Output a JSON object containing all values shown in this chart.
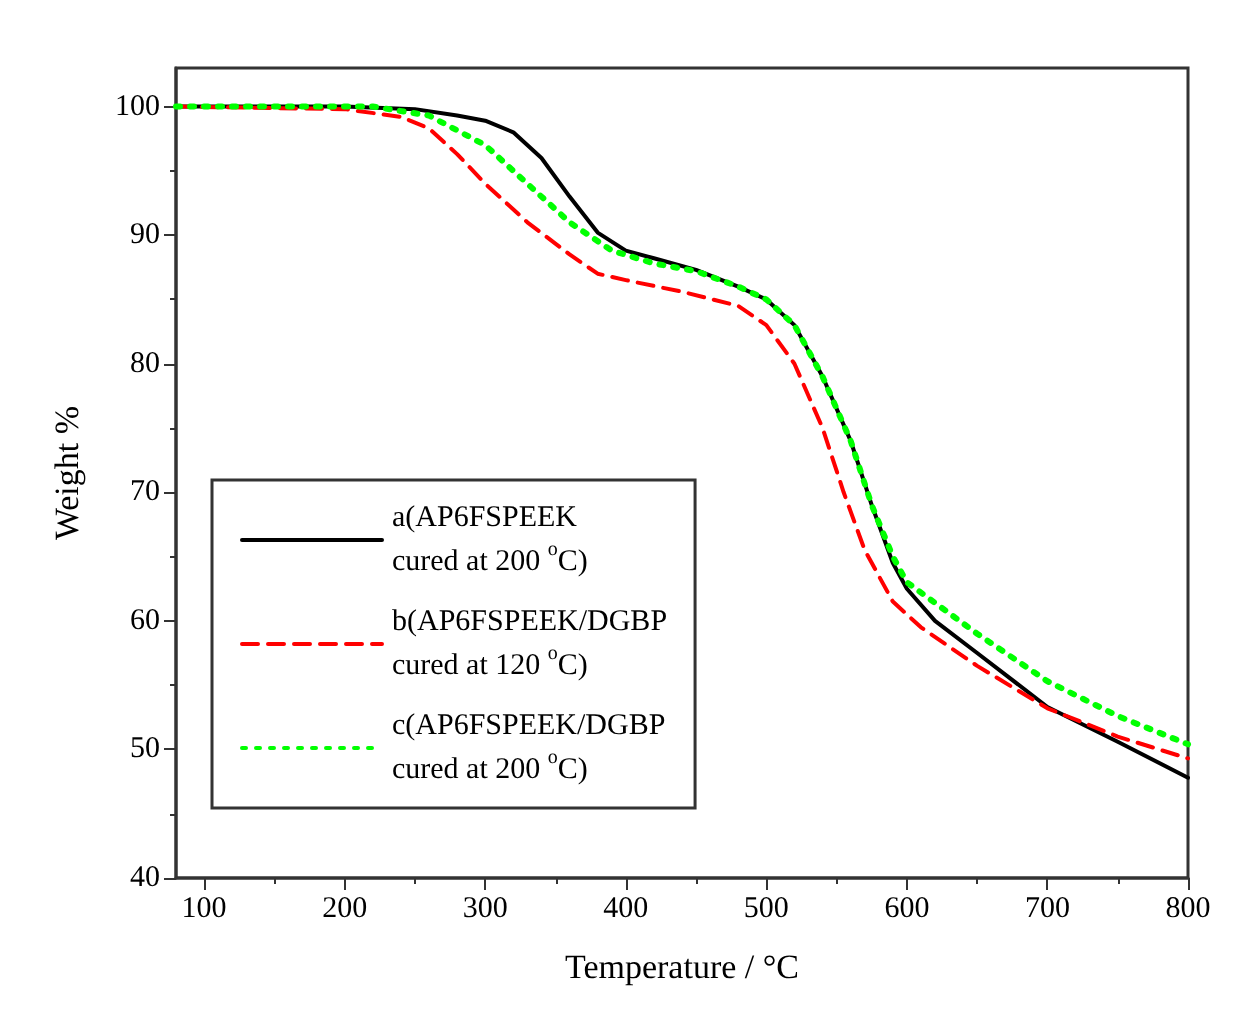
{
  "chart_data": {
    "type": "line",
    "xlabel": "Temperature / °C",
    "ylabel": "Weight %",
    "xlim": [
      80,
      800
    ],
    "ylim": [
      40,
      103
    ],
    "xticks": [
      100,
      200,
      300,
      400,
      500,
      600,
      700,
      800
    ],
    "yticks": [
      40,
      50,
      60,
      70,
      80,
      90,
      100
    ],
    "grid": false,
    "legend": "left",
    "marker": "none",
    "series": [
      {
        "name": "a(AP6FSPEEK\ncured at 200 $^{o}$C)",
        "color": "#000000",
        "line_style": "solid",
        "x": [
          80,
          200,
          250,
          280,
          300,
          320,
          340,
          360,
          380,
          400,
          420,
          450,
          480,
          500,
          520,
          540,
          560,
          575,
          590,
          600,
          620,
          650,
          700,
          750,
          800
        ],
        "values": [
          100,
          100,
          99.8,
          99.3,
          98.9,
          98,
          96,
          93,
          90.2,
          88.8,
          88.2,
          87.3,
          86,
          85,
          83,
          79,
          74,
          69,
          64.5,
          62.5,
          60,
          57.5,
          53.3,
          50.6,
          47.8
        ]
      },
      {
        "name": "b(AP6FSPEEK/DGBP\ncured at 120 $^{o}$C)",
        "color": "#ff0000",
        "line_style": "dashed",
        "x": [
          80,
          200,
          240,
          260,
          280,
          300,
          330,
          360,
          380,
          400,
          440,
          480,
          500,
          520,
          540,
          555,
          570,
          590,
          610,
          650,
          700,
          750,
          800
        ],
        "values": [
          100,
          99.8,
          99.2,
          98.3,
          96.3,
          94,
          91,
          88.5,
          87,
          86.5,
          85.6,
          84.5,
          83,
          80,
          75,
          70,
          65.5,
          61.5,
          59.5,
          56.5,
          53.2,
          51,
          49.3
        ]
      },
      {
        "name": "c(AP6FSPEEK/DGBP\ncured at 200 $^{o}$C)",
        "color": "#00ff00",
        "line_style": "dotted",
        "x": [
          80,
          220,
          260,
          300,
          330,
          360,
          390,
          420,
          450,
          480,
          500,
          520,
          540,
          560,
          575,
          590,
          600,
          650,
          700,
          750,
          800
        ],
        "values": [
          100,
          100,
          99.3,
          97,
          94,
          91,
          88.8,
          87.8,
          87.2,
          86,
          85,
          83,
          79,
          74,
          69,
          65,
          63,
          59,
          55.3,
          52.6,
          50.4
        ]
      }
    ]
  }
}
